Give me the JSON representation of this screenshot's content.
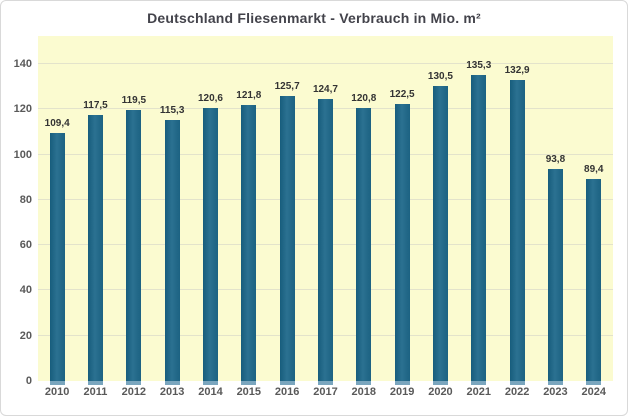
{
  "frame": {
    "background": "#ffffff",
    "border_color": "#d9d9d9"
  },
  "chart_data": {
    "type": "bar",
    "title": "Deutschland Fliesenmarkt - Verbrauch in Mio. m²",
    "xlabel": "",
    "ylabel": "",
    "categories": [
      "2010",
      "2011",
      "2012",
      "2013",
      "2014",
      "2015",
      "2016",
      "2017",
      "2018",
      "2019",
      "2020",
      "2021",
      "2022",
      "2023",
      "2024"
    ],
    "values": [
      109.4,
      117.5,
      119.5,
      115.3,
      120.6,
      121.8,
      125.7,
      124.7,
      120.8,
      122.5,
      130.5,
      135.3,
      132.9,
      93.8,
      89.4
    ],
    "value_labels": [
      "109,4",
      "117,5",
      "119,5",
      "115,3",
      "120,6",
      "121,8",
      "125,7",
      "124,7",
      "120,8",
      "122,5",
      "130,5",
      "135,3",
      "132,9",
      "93,8",
      "89,4"
    ],
    "y_ticks": [
      0,
      20,
      40,
      60,
      80,
      100,
      120,
      140
    ],
    "ylim": [
      0,
      140
    ],
    "scale_max": 152.4,
    "grid": "horizontal",
    "legend": "none",
    "colors": {
      "bar": "#1d6283",
      "bar_foot": "#7aa6be",
      "plot_background": "#fbfbd0",
      "gridline": "#e3e3cb",
      "axis_label": "#595959",
      "data_label": "#333333",
      "title": "#43434b"
    }
  }
}
